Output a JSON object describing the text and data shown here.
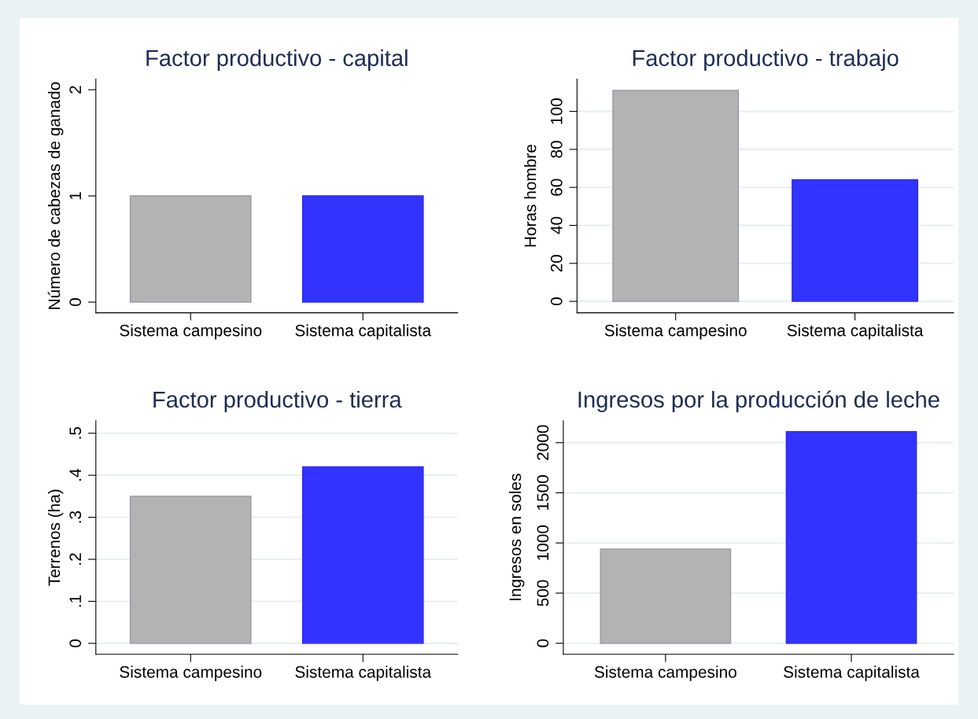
{
  "chart_data": [
    {
      "type": "bar",
      "title": "Factor productivo - capital",
      "ylabel": "Número de cabezas de ganado",
      "categories": [
        "Sistema campesino",
        "Sistema capitalista"
      ],
      "colors": [
        "#b3b3b3",
        "#3333ff"
      ],
      "values": [
        1,
        1
      ],
      "ylim": [
        -0.1,
        2.1
      ],
      "yticks": [
        0,
        1,
        2
      ],
      "grid": false
    },
    {
      "type": "bar",
      "title": "Factor productivo - trabajo",
      "ylabel": "Horas hombre",
      "categories": [
        "Sistema campesino",
        "Sistema capitalista"
      ],
      "colors": [
        "#b3b3b3",
        "#3333ff"
      ],
      "values": [
        111,
        64
      ],
      "ylim": [
        -6,
        117
      ],
      "yticks": [
        0,
        20,
        40,
        60,
        80,
        100
      ],
      "grid": "y"
    },
    {
      "type": "bar",
      "title": "Factor productivo - tierra",
      "ylabel": "Terrenos (ha)",
      "categories": [
        "Sistema campesino",
        "Sistema capitalista"
      ],
      "colors": [
        "#b3b3b3",
        "#3333ff"
      ],
      "values": [
        0.35,
        0.42
      ],
      "ylim": [
        -0.026,
        0.53
      ],
      "yticks": [
        0,
        {
          "value": 0.1,
          "label": ".1"
        },
        {
          "value": 0.2,
          "label": ".2"
        },
        {
          "value": 0.3,
          "label": ".3"
        },
        {
          "value": 0.4,
          "label": ".4"
        },
        {
          "value": 0.5,
          "label": ".5"
        }
      ],
      "grid": "y"
    },
    {
      "type": "bar",
      "title": "Ingresos por la producción de leche",
      "ylabel": "Ingresos en soles",
      "categories": [
        "Sistema campesino",
        "Sistema capitalista"
      ],
      "colors": [
        "#b3b3b3",
        "#3333ff"
      ],
      "values": [
        940,
        2110
      ],
      "ylim": [
        -110,
        2220
      ],
      "yticks": [
        0,
        500,
        1000,
        1500,
        2000
      ],
      "grid": "y"
    }
  ]
}
